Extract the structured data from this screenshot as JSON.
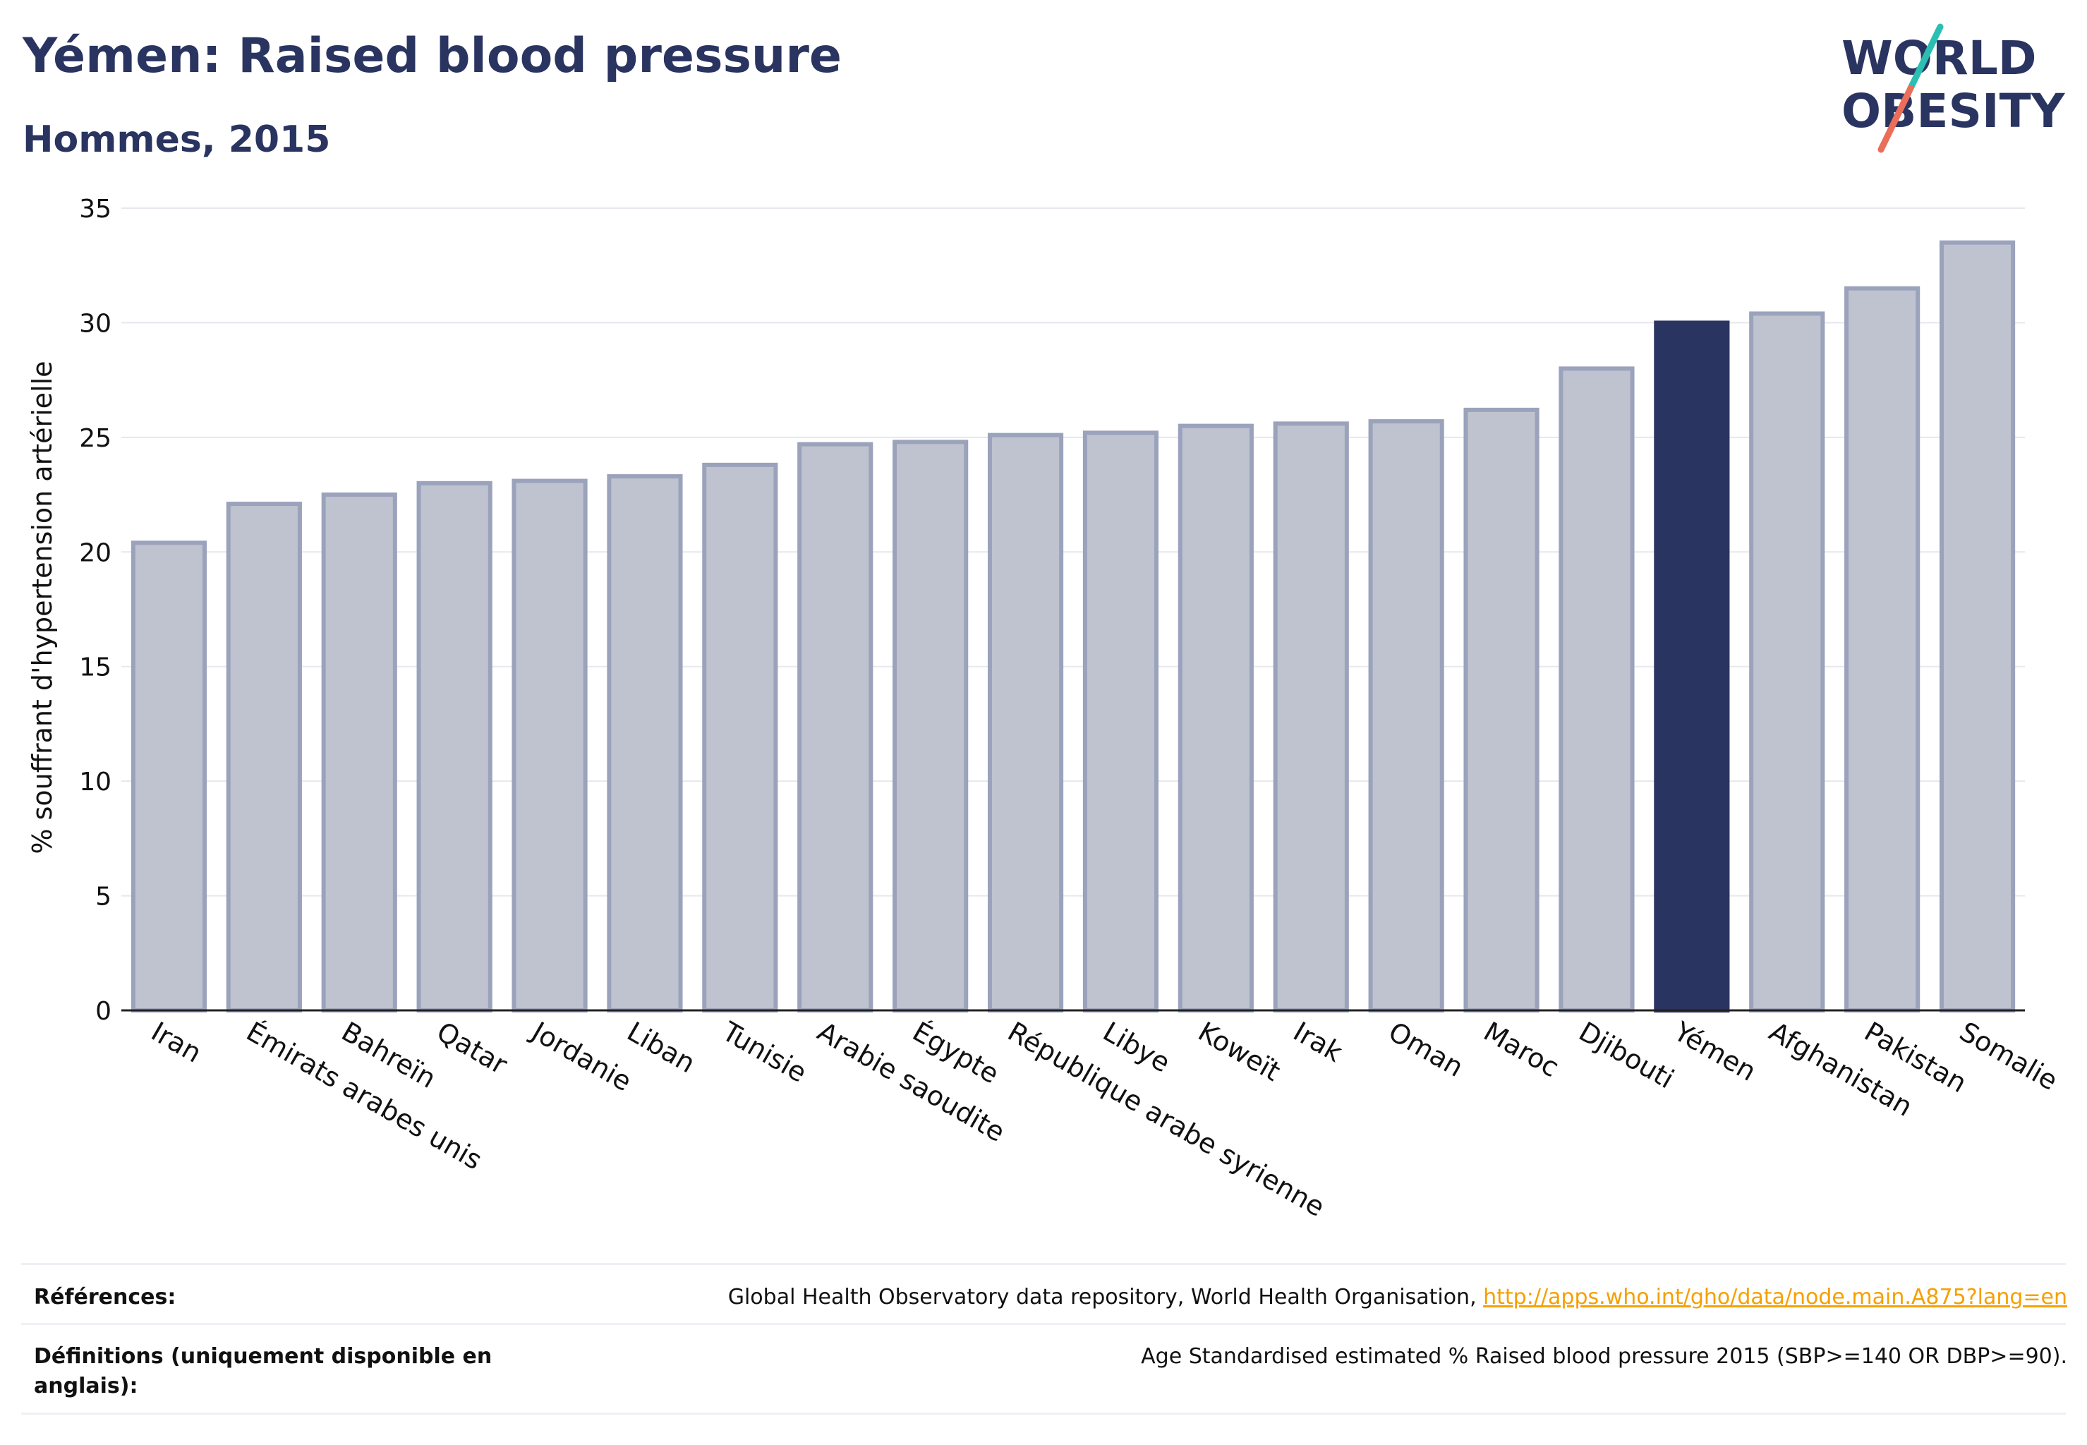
{
  "header": {
    "title": "Yémen: Raised blood pressure",
    "subtitle": "Hommes, 2015"
  },
  "logo": {
    "line1": "WORLD",
    "line2": "OBESITY",
    "colors": {
      "text": "#2a3460",
      "slash_top": "#2bbfb3",
      "slash_bottom": "#ea6e5a"
    }
  },
  "chart_data": {
    "type": "bar",
    "categories": [
      "Iran",
      "Émirats arabes unis",
      "Bahreïn",
      "Qatar",
      "Jordanie",
      "Liban",
      "Tunisie",
      "Arabie saoudite",
      "Égypte",
      "République arabe syrienne",
      "Libye",
      "Koweït",
      "Irak",
      "Oman",
      "Maroc",
      "Djibouti",
      "Yémen",
      "Afghanistan",
      "Pakistan",
      "Somalie"
    ],
    "values": [
      20.4,
      22.1,
      22.5,
      23.0,
      23.1,
      23.3,
      23.8,
      24.7,
      24.8,
      25.1,
      25.2,
      25.5,
      25.6,
      25.7,
      26.2,
      28.0,
      30.0,
      30.4,
      31.5,
      33.5
    ],
    "highlight": "Yémen",
    "ylabel": "% souffrant d'hypertension artérielle",
    "xlabel": "",
    "ylim": [
      0,
      35
    ],
    "yticks": [
      0,
      5,
      10,
      15,
      20,
      25,
      30,
      35
    ],
    "grid": true,
    "colors": {
      "bar": "#bfc3d0",
      "bar_border": "#9ba2bb",
      "highlight": "#2a3460",
      "grid": "#e6e8ee"
    }
  },
  "footer": {
    "references_label": "Références:",
    "references_text": "Global Health Observatory data repository, World Health Organisation, ",
    "references_link": "http://apps.who.int/gho/data/node.main.A875?lang=en",
    "definitions_label": "Définitions (uniquement disponible en anglais):",
    "definitions_text": "Age Standardised estimated % Raised blood pressure 2015 (SBP>=140 OR DBP>=90)."
  }
}
